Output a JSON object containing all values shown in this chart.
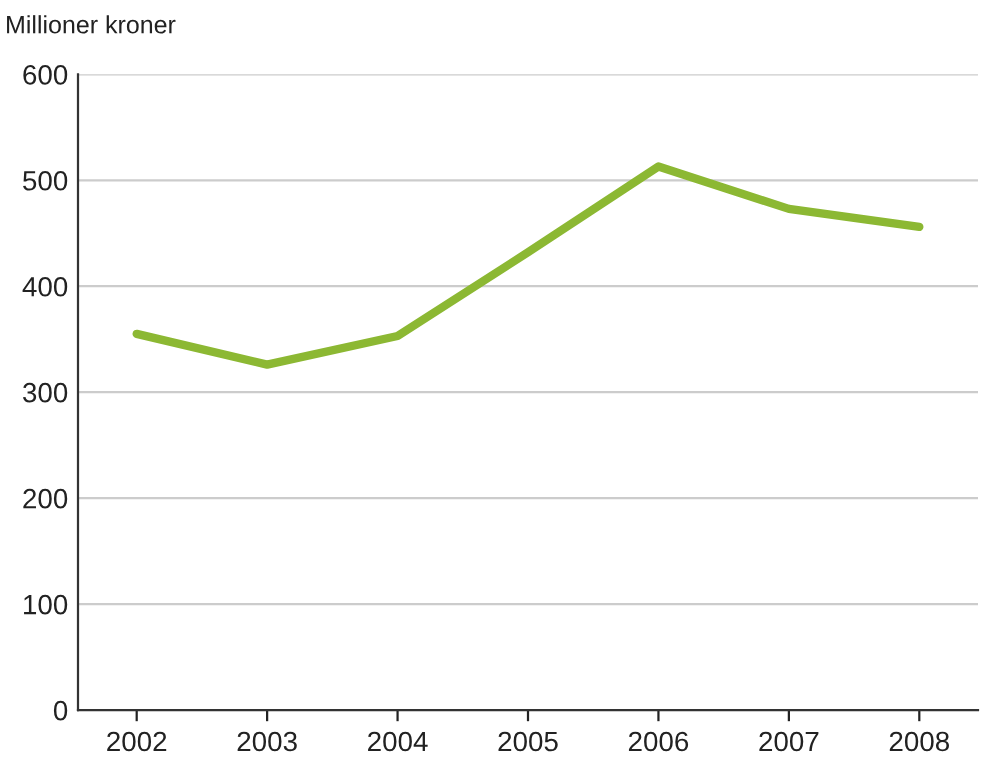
{
  "chart_data": {
    "type": "line",
    "ylabel": "Millioner kroner",
    "categories": [
      "2002",
      "2003",
      "2004",
      "2005",
      "2006",
      "2007",
      "2008"
    ],
    "series": [
      {
        "color": "#8cb833",
        "values": [
          355,
          326,
          353,
          432,
          513,
          473,
          456
        ]
      }
    ],
    "ylim": [
      0,
      600
    ],
    "yticks": [
      0,
      100,
      200,
      300,
      400,
      500,
      600
    ],
    "grid": "y",
    "marker": "none",
    "line_style": "solid"
  }
}
